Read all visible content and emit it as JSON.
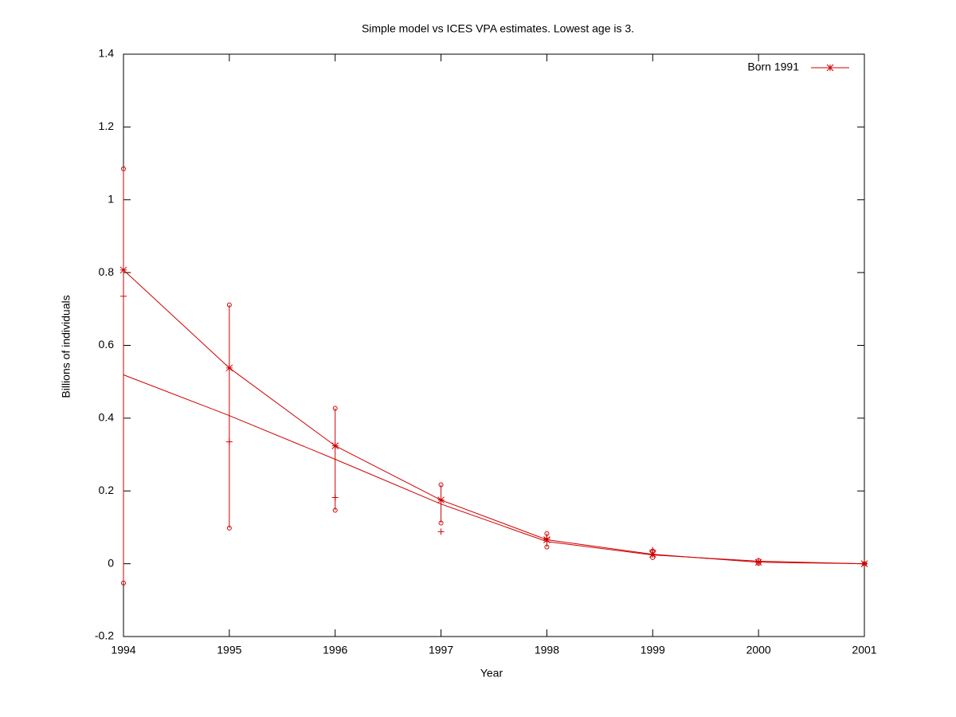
{
  "chart_data": {
    "type": "line",
    "title": "Simple model vs ICES VPA estimates. Lowest age is 3.",
    "x_label": "Year",
    "y_label": "Billions of individuals",
    "x": [
      1994,
      1995,
      1996,
      1997,
      1998,
      1999,
      2000,
      2001
    ],
    "xlim": [
      1994,
      2001
    ],
    "xticks": [
      1994,
      1995,
      1996,
      1997,
      1998,
      1999,
      2000,
      2001
    ],
    "ylim": [
      -0.2,
      1.4
    ],
    "yticks": [
      -0.2,
      0,
      0.2,
      0.4,
      0.6,
      0.8,
      1,
      1.2,
      1.4
    ],
    "legend": "top-right",
    "series": [
      {
        "name": "Born 1991",
        "color": "#d00000",
        "marker": "star",
        "line": true,
        "values": [
          0.807,
          0.538,
          0.324,
          0.175,
          0.066,
          0.026,
          0.004,
          0
        ],
        "lower": [
          -0.053,
          0.098,
          0.147,
          0.112,
          0.046,
          0.017,
          0.001,
          0
        ],
        "upper": [
          1.085,
          0.711,
          0.427,
          0.217,
          0.083,
          0.035,
          0.009,
          0
        ]
      },
      {
        "color": "#d00000",
        "marker": "none",
        "line": true,
        "values": [
          0.519,
          0.407,
          0.287,
          0.164,
          0.061,
          0.024,
          0.007,
          0
        ]
      },
      {
        "color": "#d00000",
        "marker": "plus",
        "line": false,
        "values": [
          0.735,
          0.335,
          0.182,
          0.088,
          0.07,
          0.037,
          0.006,
          0
        ]
      }
    ]
  }
}
